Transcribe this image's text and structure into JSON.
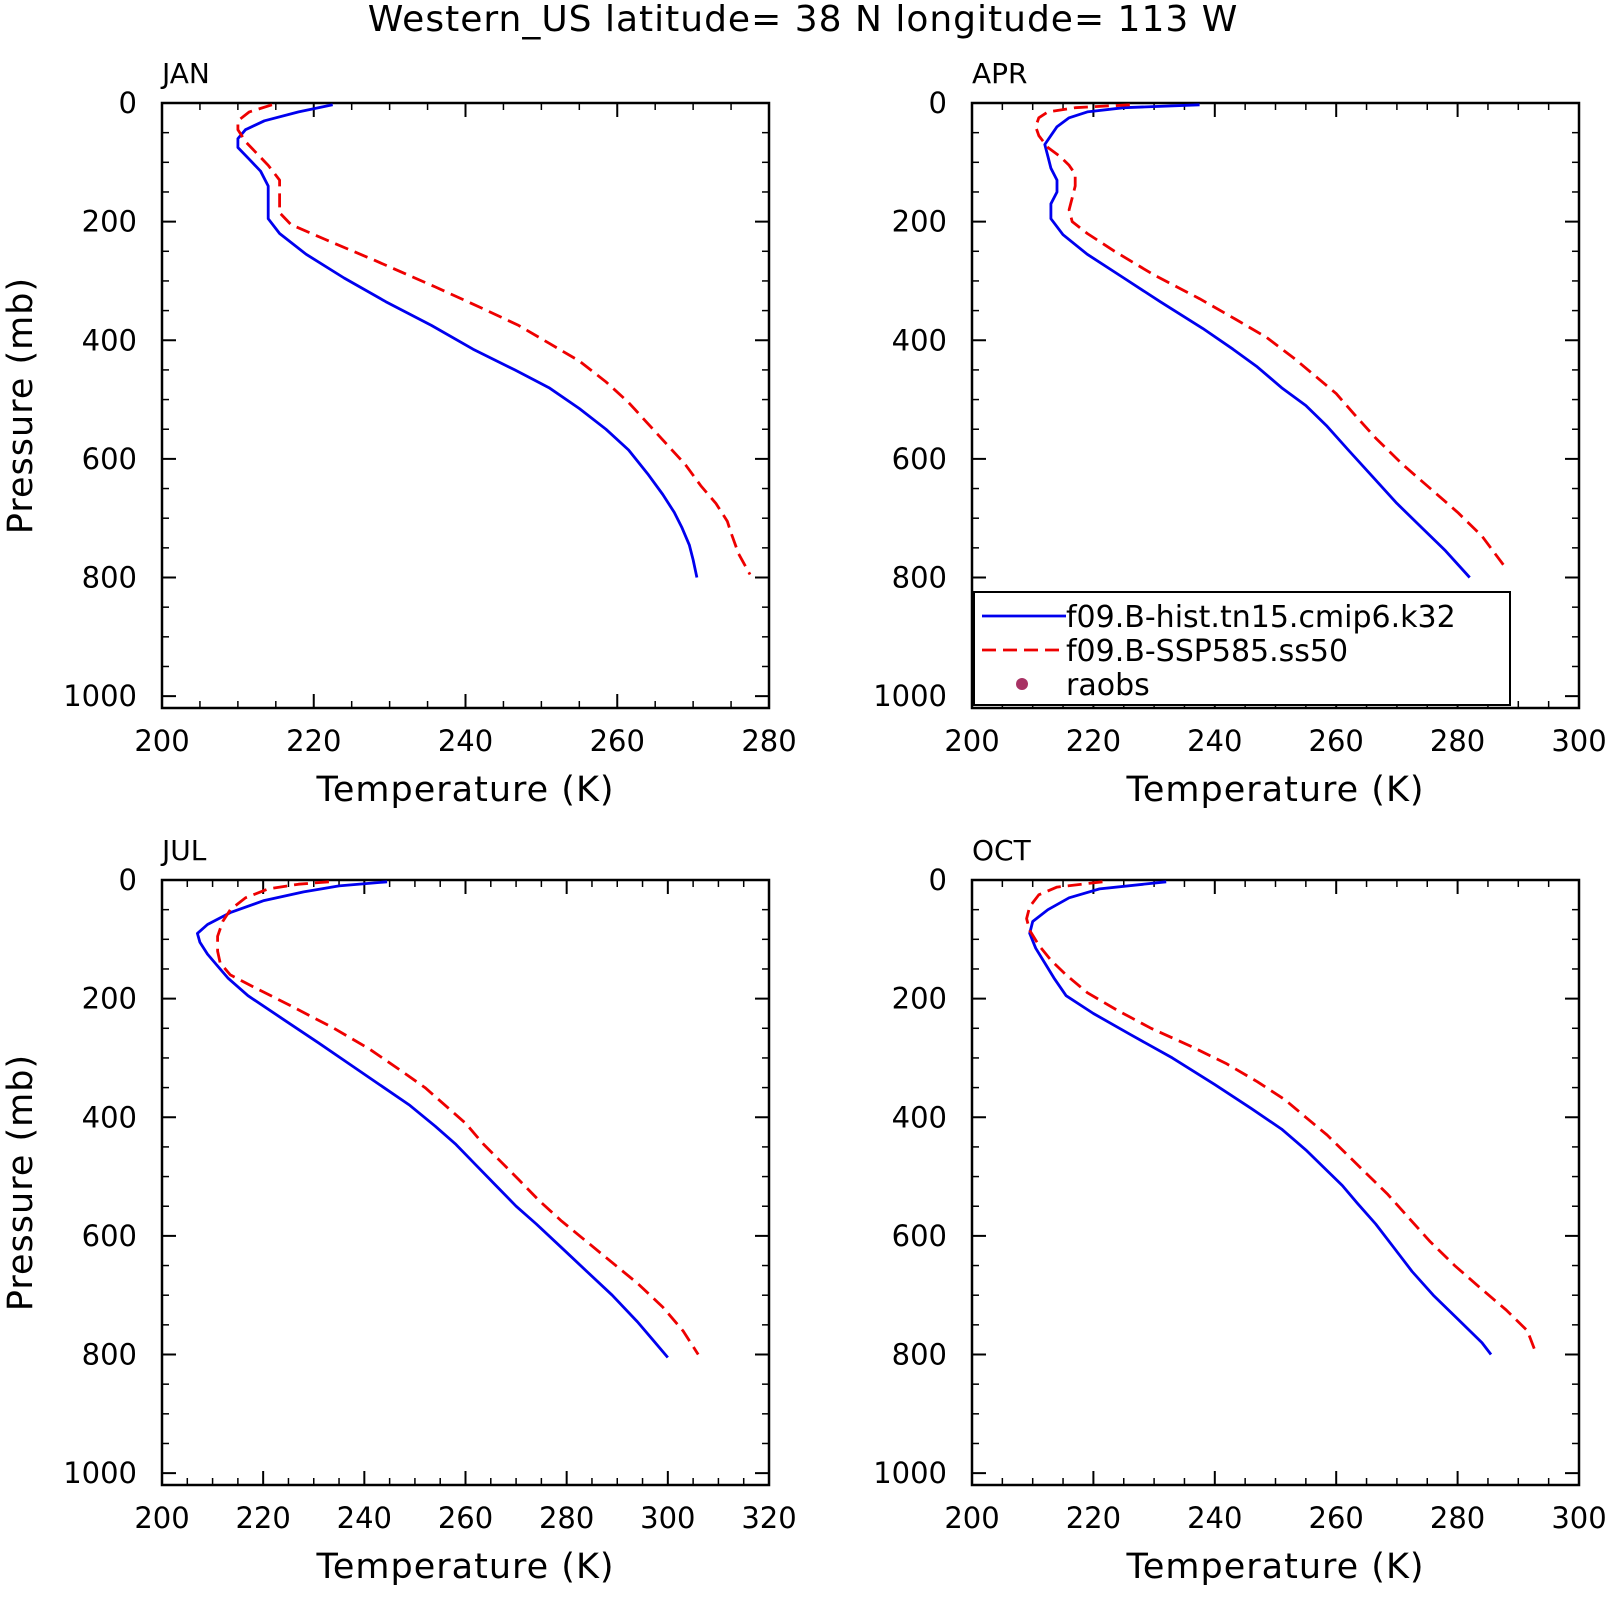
{
  "page_title": "Western_US  latitude= 38 N longitude= 113 W",
  "colors": {
    "model_hist": "#0000ee",
    "model_ssp": "#ee0000",
    "raobs": "#a83264"
  },
  "legend": {
    "entries": [
      {
        "label": "f09.B-hist.tn15.cmip6.k32",
        "style": "solid",
        "color": "#0000ee"
      },
      {
        "label": "f09.B-SSP585.ss50",
        "style": "dashed",
        "color": "#ee0000"
      },
      {
        "label": "raobs",
        "style": "marker",
        "color": "#a83264"
      }
    ]
  },
  "chart_data": [
    {
      "type": "line",
      "title": "JAN",
      "xlabel": "Temperature (K)",
      "ylabel": "Pressure (mb)",
      "xlim": [
        200,
        280
      ],
      "ylim": [
        1020,
        0
      ],
      "xticks": [
        200,
        220,
        240,
        260,
        280
      ],
      "yticks": [
        0,
        200,
        400,
        600,
        800,
        1000
      ],
      "show_ylabel": true,
      "show_legend": false,
      "series": [
        {
          "points": [
            [
              222.5,
              3
            ],
            [
              218,
              15
            ],
            [
              213.5,
              30
            ],
            [
              211,
              45
            ],
            [
              210,
              60
            ],
            [
              210,
              75
            ],
            [
              211.5,
              95
            ],
            [
              213,
              115
            ],
            [
              214,
              140
            ],
            [
              214,
              165
            ],
            [
              214,
              195
            ],
            [
              215.5,
              220
            ],
            [
              219,
              255
            ],
            [
              224,
              295
            ],
            [
              229.5,
              335
            ],
            [
              235.5,
              375
            ],
            [
              241,
              415
            ],
            [
              246.5,
              450
            ],
            [
              251,
              480
            ],
            [
              255,
              515
            ],
            [
              258.5,
              550
            ],
            [
              261.5,
              585
            ],
            [
              264,
              625
            ],
            [
              266,
              660
            ],
            [
              267.5,
              690
            ],
            [
              268.5,
              715
            ],
            [
              269.5,
              745
            ],
            [
              270,
              770
            ],
            [
              270.5,
              800
            ]
          ]
        },
        {
          "points": [
            [
              214.5,
              3
            ],
            [
              211.5,
              15
            ],
            [
              210,
              30
            ],
            [
              210,
              45
            ],
            [
              211,
              65
            ],
            [
              212.5,
              85
            ],
            [
              214,
              105
            ],
            [
              215.5,
              130
            ],
            [
              215.5,
              160
            ],
            [
              215.5,
              185
            ],
            [
              217,
              205
            ],
            [
              221.5,
              230
            ],
            [
              228,
              265
            ],
            [
              236,
              310
            ],
            [
              242,
              345
            ],
            [
              247,
              375
            ],
            [
              251,
              405
            ],
            [
              255,
              435
            ],
            [
              258.5,
              470
            ],
            [
              261.5,
              505
            ],
            [
              264,
              540
            ],
            [
              266.5,
              575
            ],
            [
              269,
              610
            ],
            [
              271,
              645
            ],
            [
              273,
              675
            ],
            [
              274.5,
              705
            ],
            [
              275,
              725
            ],
            [
              276,
              760
            ],
            [
              277.5,
              795
            ]
          ]
        }
      ]
    },
    {
      "type": "line",
      "title": "APR",
      "xlabel": "Temperature (K)",
      "ylabel": "Pressure (mb)",
      "xlim": [
        200,
        300
      ],
      "ylim": [
        1020,
        0
      ],
      "xticks": [
        200,
        220,
        240,
        260,
        280,
        300
      ],
      "yticks": [
        0,
        200,
        400,
        600,
        800,
        1000
      ],
      "show_ylabel": false,
      "show_legend": true,
      "series": [
        {
          "points": [
            [
              237.5,
              3
            ],
            [
              225,
              8
            ],
            [
              219,
              15
            ],
            [
              216,
              25
            ],
            [
              214,
              40
            ],
            [
              213,
              55
            ],
            [
              212,
              70
            ],
            [
              212.5,
              90
            ],
            [
              213,
              110
            ],
            [
              214,
              130
            ],
            [
              214,
              150
            ],
            [
              213,
              170
            ],
            [
              213,
              195
            ],
            [
              215,
              222
            ],
            [
              219,
              255
            ],
            [
              225,
              295
            ],
            [
              231,
              335
            ],
            [
              238,
              380
            ],
            [
              243,
              415
            ],
            [
              247,
              445
            ],
            [
              251,
              480
            ],
            [
              255,
              510
            ],
            [
              258.5,
              545
            ],
            [
              262,
              585
            ],
            [
              266,
              630
            ],
            [
              270,
              675
            ],
            [
              274,
              715
            ],
            [
              278,
              755
            ],
            [
              282,
              800
            ]
          ]
        },
        {
          "points": [
            [
              226,
              3
            ],
            [
              217,
              8
            ],
            [
              212.5,
              15
            ],
            [
              211,
              25
            ],
            [
              210.5,
              40
            ],
            [
              211,
              55
            ],
            [
              212.5,
              75
            ],
            [
              214.5,
              90
            ],
            [
              216,
              105
            ],
            [
              217,
              120
            ],
            [
              217,
              140
            ],
            [
              216.5,
              160
            ],
            [
              216,
              180
            ],
            [
              216.5,
              200
            ],
            [
              219,
              220
            ],
            [
              223.5,
              250
            ],
            [
              230,
              290
            ],
            [
              237.5,
              330
            ],
            [
              243.5,
              365
            ],
            [
              248.5,
              395
            ],
            [
              253,
              430
            ],
            [
              256.5,
              460
            ],
            [
              260,
              490
            ],
            [
              263,
              525
            ],
            [
              266.5,
              565
            ],
            [
              271,
              610
            ],
            [
              275.5,
              650
            ],
            [
              280,
              690
            ],
            [
              284,
              730
            ],
            [
              288,
              785
            ]
          ]
        }
      ]
    },
    {
      "type": "line",
      "title": "JUL",
      "xlabel": "Temperature (K)",
      "ylabel": "Pressure (mb)",
      "xlim": [
        200,
        320
      ],
      "ylim": [
        1020,
        0
      ],
      "xticks": [
        200,
        220,
        240,
        260,
        280,
        300,
        320
      ],
      "yticks": [
        0,
        200,
        400,
        600,
        800,
        1000
      ],
      "show_ylabel": true,
      "show_legend": false,
      "series": [
        {
          "points": [
            [
              244.5,
              3
            ],
            [
              235,
              10
            ],
            [
              228,
              20
            ],
            [
              220,
              35
            ],
            [
              213.5,
              55
            ],
            [
              209,
              75
            ],
            [
              207,
              90
            ],
            [
              207.5,
              105
            ],
            [
              209,
              125
            ],
            [
              211,
              145
            ],
            [
              213,
              165
            ],
            [
              217,
              195
            ],
            [
              224,
              235
            ],
            [
              231,
              275
            ],
            [
              237,
              310
            ],
            [
              243,
              345
            ],
            [
              249,
              380
            ],
            [
              254,
              415
            ],
            [
              258,
              445
            ],
            [
              262,
              480
            ],
            [
              266,
              515
            ],
            [
              270,
              550
            ],
            [
              274,
              580
            ],
            [
              279,
              620
            ],
            [
              284,
              660
            ],
            [
              289,
              700
            ],
            [
              294,
              745
            ],
            [
              297,
              775
            ],
            [
              300,
              805
            ]
          ]
        },
        {
          "points": [
            [
              233,
              3
            ],
            [
              227,
              7
            ],
            [
              221,
              15
            ],
            [
              216.5,
              30
            ],
            [
              213.5,
              50
            ],
            [
              212,
              70
            ],
            [
              211,
              95
            ],
            [
              211,
              120
            ],
            [
              211.5,
              140
            ],
            [
              213.5,
              160
            ],
            [
              218,
              180
            ],
            [
              225,
              210
            ],
            [
              234,
              250
            ],
            [
              241,
              285
            ],
            [
              247,
              320
            ],
            [
              252,
              350
            ],
            [
              256,
              380
            ],
            [
              260,
              410
            ],
            [
              263.5,
              445
            ],
            [
              267,
              475
            ],
            [
              270.5,
              505
            ],
            [
              274.5,
              540
            ],
            [
              279,
              575
            ],
            [
              284,
              610
            ],
            [
              289,
              645
            ],
            [
              294,
              680
            ],
            [
              299,
              720
            ],
            [
              303,
              760
            ],
            [
              306,
              800
            ]
          ]
        }
      ]
    },
    {
      "type": "line",
      "title": "OCT",
      "xlabel": "Temperature (K)",
      "ylabel": "Pressure (mb)",
      "xlim": [
        200,
        300
      ],
      "ylim": [
        1020,
        0
      ],
      "xticks": [
        200,
        220,
        240,
        260,
        280,
        300
      ],
      "yticks": [
        0,
        200,
        400,
        600,
        800,
        1000
      ],
      "show_ylabel": false,
      "show_legend": false,
      "series": [
        {
          "points": [
            [
              232,
              3
            ],
            [
              221,
              15
            ],
            [
              216,
              30
            ],
            [
              212.5,
              50
            ],
            [
              210,
              70
            ],
            [
              209.5,
              90
            ],
            [
              210.5,
              115
            ],
            [
              212,
              140
            ],
            [
              213.5,
              165
            ],
            [
              215.5,
              195
            ],
            [
              220,
              225
            ],
            [
              226,
              260
            ],
            [
              233,
              300
            ],
            [
              240,
              345
            ],
            [
              246,
              385
            ],
            [
              251,
              420
            ],
            [
              255,
              455
            ],
            [
              258,
              485
            ],
            [
              261,
              515
            ],
            [
              263.5,
              545
            ],
            [
              266.5,
              580
            ],
            [
              269.5,
              620
            ],
            [
              272.5,
              660
            ],
            [
              276,
              700
            ],
            [
              280,
              740
            ],
            [
              284,
              780
            ],
            [
              285.5,
              800
            ]
          ]
        },
        {
          "points": [
            [
              221.5,
              3
            ],
            [
              214,
              12
            ],
            [
              211,
              25
            ],
            [
              209.5,
              45
            ],
            [
              209,
              65
            ],
            [
              209.5,
              85
            ],
            [
              211,
              110
            ],
            [
              213,
              135
            ],
            [
              215.5,
              160
            ],
            [
              219,
              190
            ],
            [
              224,
              220
            ],
            [
              229.5,
              250
            ],
            [
              236,
              280
            ],
            [
              242,
              310
            ],
            [
              247,
              340
            ],
            [
              251.5,
              370
            ],
            [
              255,
              400
            ],
            [
              258.5,
              430
            ],
            [
              262,
              465
            ],
            [
              265,
              495
            ],
            [
              268.5,
              530
            ],
            [
              272,
              570
            ],
            [
              275.5,
              610
            ],
            [
              279.5,
              650
            ],
            [
              284,
              690
            ],
            [
              288,
              725
            ],
            [
              291.5,
              760
            ],
            [
              293,
              800
            ]
          ]
        }
      ]
    }
  ]
}
